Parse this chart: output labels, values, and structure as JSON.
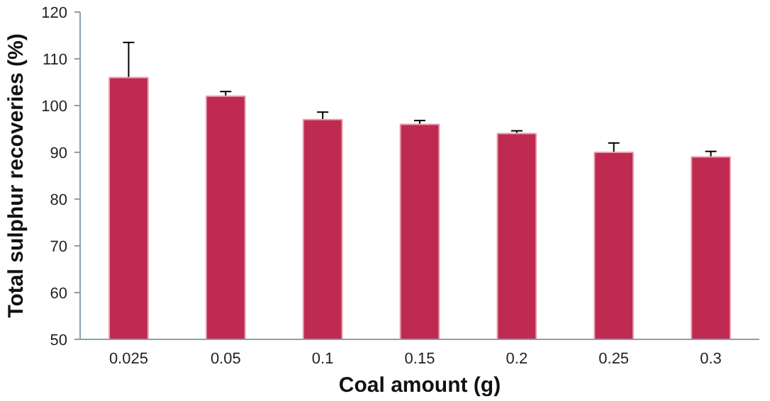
{
  "chart_data": {
    "type": "bar",
    "xlabel": "Coal amount (g)",
    "ylabel": "Total sulphur recoveries (%)",
    "categories": [
      "0.025",
      "0.05",
      "0.1",
      "0.15",
      "0.2",
      "0.25",
      "0.3"
    ],
    "values": [
      106,
      102,
      97,
      96,
      94,
      90,
      89
    ],
    "errors": [
      [
        105,
        113.5
      ],
      [
        101,
        103
      ],
      [
        96,
        98.6
      ],
      [
        95.2,
        96.8
      ],
      [
        93.4,
        94.6
      ],
      [
        89,
        92
      ],
      [
        88.2,
        90.2
      ]
    ],
    "color": "#be2a50",
    "ylim": [
      50,
      120
    ],
    "yticks": [
      50,
      60,
      70,
      80,
      90,
      100,
      110,
      120
    ],
    "grid": false
  }
}
